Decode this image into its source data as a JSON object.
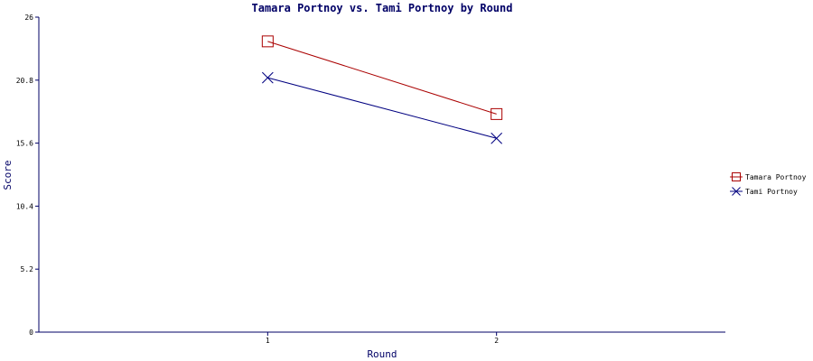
{
  "chart_data": {
    "type": "line",
    "title": "Tamara Portnoy vs. Tami Portnoy by Round",
    "xlabel": "Round",
    "ylabel": "Score",
    "categories": [
      "1",
      "2"
    ],
    "yticks": [
      "0",
      "5.2",
      "10.4",
      "15.6",
      "20.8",
      "26"
    ],
    "ylim": [
      0,
      26
    ],
    "grid": false,
    "legend_position": "right",
    "series": [
      {
        "name": "Tamara Portnoy",
        "values": [
          24.0,
          18.0
        ],
        "color": "#aa0000",
        "marker": "square"
      },
      {
        "name": "Tami Portnoy",
        "values": [
          21.0,
          16.0
        ],
        "color": "#000080",
        "marker": "x"
      }
    ]
  }
}
